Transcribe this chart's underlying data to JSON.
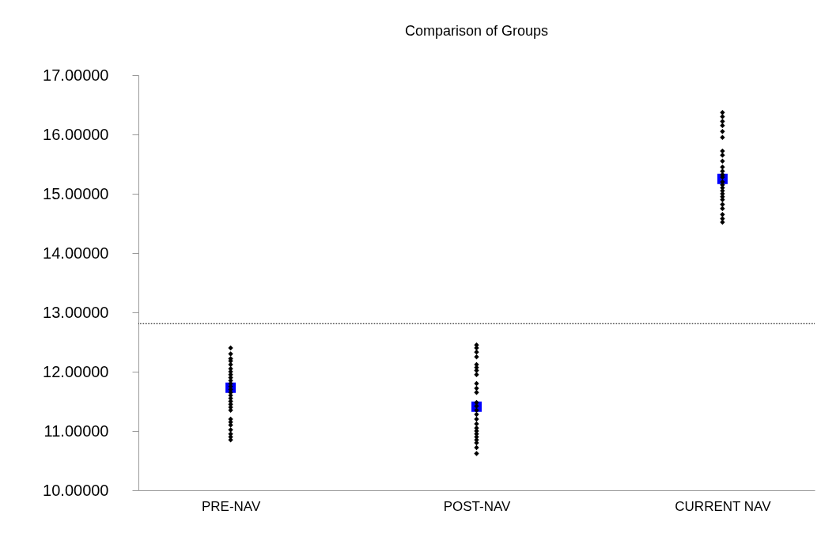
{
  "chart_data": {
    "type": "scatter",
    "title": "Comparison of Groups",
    "categories": [
      "PRE-NAV",
      "POST-NAV",
      "CURRENT NAV"
    ],
    "ylim": [
      10,
      17
    ],
    "yticks": [
      {
        "value": 10,
        "label": "10.00000"
      },
      {
        "value": 11,
        "label": "11.00000"
      },
      {
        "value": 12,
        "label": "12.00000"
      },
      {
        "value": 13,
        "label": "13.00000"
      },
      {
        "value": 14,
        "label": "14.00000"
      },
      {
        "value": 15,
        "label": "15.00000"
      },
      {
        "value": 16,
        "label": "16.00000"
      },
      {
        "value": 17,
        "label": "17.00000"
      }
    ],
    "grid": false,
    "series": [
      {
        "type": "scatter",
        "color": "#000000",
        "marker": "diamond",
        "x": [
          "PRE-NAV",
          "PRE-NAV",
          "PRE-NAV",
          "PRE-NAV",
          "PRE-NAV",
          "PRE-NAV",
          "PRE-NAV",
          "PRE-NAV",
          "PRE-NAV",
          "PRE-NAV",
          "PRE-NAV",
          "PRE-NAV",
          "PRE-NAV",
          "PRE-NAV",
          "PRE-NAV",
          "PRE-NAV",
          "PRE-NAV",
          "PRE-NAV",
          "PRE-NAV",
          "PRE-NAV",
          "PRE-NAV",
          "PRE-NAV",
          "PRE-NAV",
          "PRE-NAV",
          "PRE-NAV",
          "PRE-NAV",
          "PRE-NAV"
        ],
        "values": [
          12.4,
          12.3,
          12.22,
          12.18,
          12.12,
          12.05,
          12.0,
          11.95,
          11.9,
          11.85,
          11.8,
          11.75,
          11.7,
          11.65,
          11.6,
          11.55,
          11.5,
          11.45,
          11.4,
          11.35,
          11.2,
          11.15,
          11.1,
          11.02,
          10.95,
          10.9,
          10.85
        ]
      },
      {
        "type": "scatter",
        "color": "#000000",
        "marker": "diamond",
        "x": [
          "POST-NAV",
          "POST-NAV",
          "POST-NAV",
          "POST-NAV",
          "POST-NAV",
          "POST-NAV",
          "POST-NAV",
          "POST-NAV",
          "POST-NAV",
          "POST-NAV",
          "POST-NAV",
          "POST-NAV",
          "POST-NAV",
          "POST-NAV",
          "POST-NAV",
          "POST-NAV",
          "POST-NAV",
          "POST-NAV",
          "POST-NAV",
          "POST-NAV",
          "POST-NAV",
          "POST-NAV",
          "POST-NAV",
          "POST-NAV",
          "POST-NAV"
        ],
        "values": [
          12.45,
          12.4,
          12.33,
          12.25,
          12.12,
          12.07,
          12.02,
          11.95,
          11.8,
          11.72,
          11.65,
          11.48,
          11.42,
          11.35,
          11.28,
          11.2,
          11.12,
          11.05,
          11.0,
          10.95,
          10.9,
          10.85,
          10.8,
          10.72,
          10.62
        ]
      },
      {
        "type": "scatter",
        "color": "#000000",
        "marker": "diamond",
        "x": [
          "CURRENT NAV",
          "CURRENT NAV",
          "CURRENT NAV",
          "CURRENT NAV",
          "CURRENT NAV",
          "CURRENT NAV",
          "CURRENT NAV",
          "CURRENT NAV",
          "CURRENT NAV",
          "CURRENT NAV",
          "CURRENT NAV",
          "CURRENT NAV",
          "CURRENT NAV",
          "CURRENT NAV",
          "CURRENT NAV",
          "CURRENT NAV",
          "CURRENT NAV",
          "CURRENT NAV",
          "CURRENT NAV",
          "CURRENT NAV",
          "CURRENT NAV",
          "CURRENT NAV",
          "CURRENT NAV",
          "CURRENT NAV",
          "CURRENT NAV"
        ],
        "values": [
          16.37,
          16.3,
          16.22,
          16.15,
          16.05,
          15.95,
          15.72,
          15.65,
          15.55,
          15.45,
          15.38,
          15.32,
          15.28,
          15.2,
          15.15,
          15.1,
          15.05,
          15.0,
          14.95,
          14.9,
          14.82,
          14.75,
          14.65,
          14.58,
          14.52
        ]
      },
      {
        "type": "scatter",
        "color": "#0000ff",
        "marker": "square",
        "x": [
          "PRE-NAV",
          "POST-NAV",
          "CURRENT NAV"
        ],
        "values": [
          11.73,
          11.41,
          15.25
        ]
      }
    ],
    "ref_lines": [
      {
        "axis": "y",
        "value": 12.81,
        "color": "#000000",
        "line_style": "dotted"
      }
    ]
  }
}
